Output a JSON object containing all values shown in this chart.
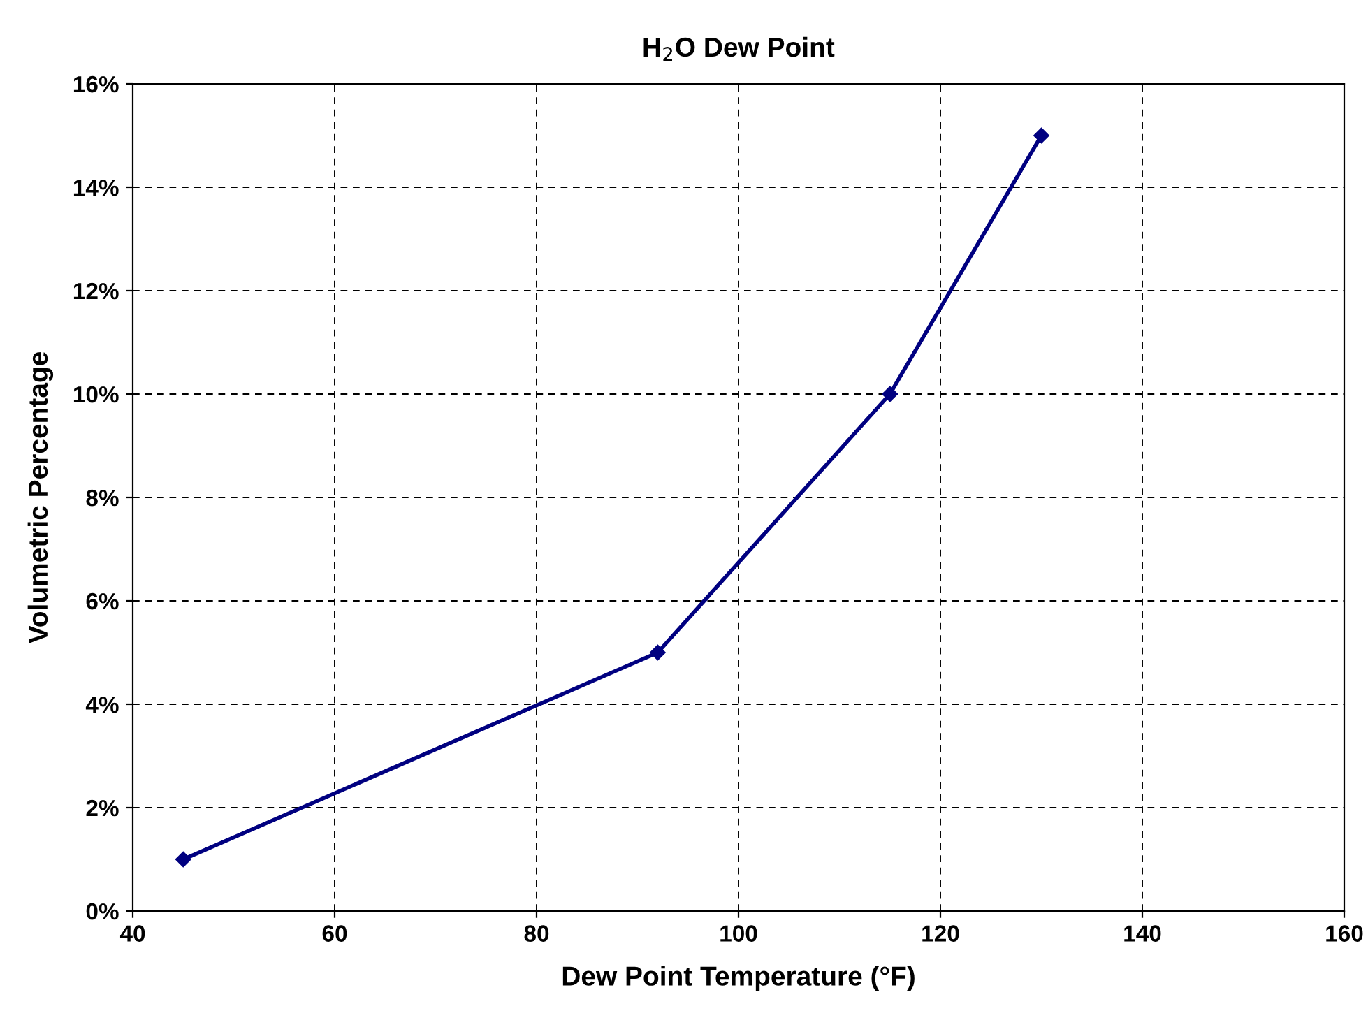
{
  "chart_data": {
    "type": "line",
    "title": "H$_{2}$O Dew Point",
    "xlabel": "Dew Point Temperature (°F)",
    "ylabel": "Volumetric Percentage",
    "x": [
      45,
      92,
      115,
      130
    ],
    "series": [
      {
        "color": "#000080",
        "values": [
          1,
          5,
          10,
          15
        ]
      }
    ],
    "xlim": [
      40,
      160
    ],
    "xticks": [
      40,
      60,
      80,
      100,
      120,
      140,
      160
    ],
    "ylim": [
      0,
      16
    ],
    "yticks": [
      {
        "value": 0,
        "label": "0%"
      },
      {
        "value": 2,
        "label": "2%"
      },
      {
        "value": 4,
        "label": "4%"
      },
      {
        "value": 6,
        "label": "6%"
      },
      {
        "value": 8,
        "label": "8%"
      },
      {
        "value": 10,
        "label": "10%"
      },
      {
        "value": 12,
        "label": "12%"
      },
      {
        "value": 14,
        "label": "14%"
      },
      {
        "value": 16,
        "label": "16%"
      }
    ],
    "grid": true,
    "marker": "diamond",
    "line_style": "solid"
  }
}
